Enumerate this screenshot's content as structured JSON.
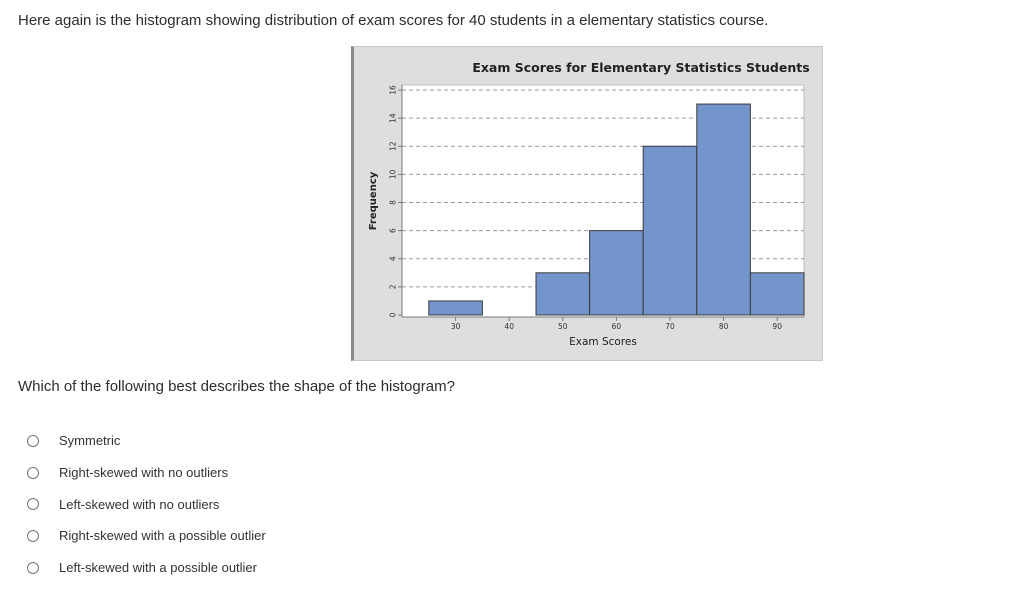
{
  "intro_text": "Here again is the histogram showing distribution of exam scores for 40 students in a elementary statistics course.",
  "question_text": "Which of the following best describes the shape of the histogram?",
  "options": [
    {
      "label": "Symmetric"
    },
    {
      "label": "Right-skewed with no outliers"
    },
    {
      "label": "Left-skewed with no outliers"
    },
    {
      "label": "Right-skewed with a possible outlier"
    },
    {
      "label": "Left-skewed with a possible outlier"
    }
  ],
  "chart_data": {
    "type": "bar",
    "title": "Exam Scores for Elementary Statistics Students",
    "xlabel": "Exam Scores",
    "ylabel": "Frequency",
    "bins": [
      {
        "start": 25,
        "end": 35,
        "count": 1
      },
      {
        "start": 35,
        "end": 45,
        "count": 0
      },
      {
        "start": 45,
        "end": 55,
        "count": 3
      },
      {
        "start": 55,
        "end": 65,
        "count": 6
      },
      {
        "start": 65,
        "end": 75,
        "count": 12
      },
      {
        "start": 75,
        "end": 85,
        "count": 15
      },
      {
        "start": 85,
        "end": 95,
        "count": 3
      }
    ],
    "x_ticks": [
      30,
      40,
      50,
      60,
      70,
      80,
      90
    ],
    "y_ticks": [
      0,
      2,
      4,
      6,
      8,
      10,
      12,
      14,
      16
    ],
    "xlim": [
      20,
      95
    ],
    "ylim": [
      0,
      16
    ],
    "grid": true,
    "bar_color": "#7395cc",
    "bar_edge_color": "#3a3a3a",
    "background_color": "#dedede",
    "plot_background_color": "#ffffff"
  }
}
